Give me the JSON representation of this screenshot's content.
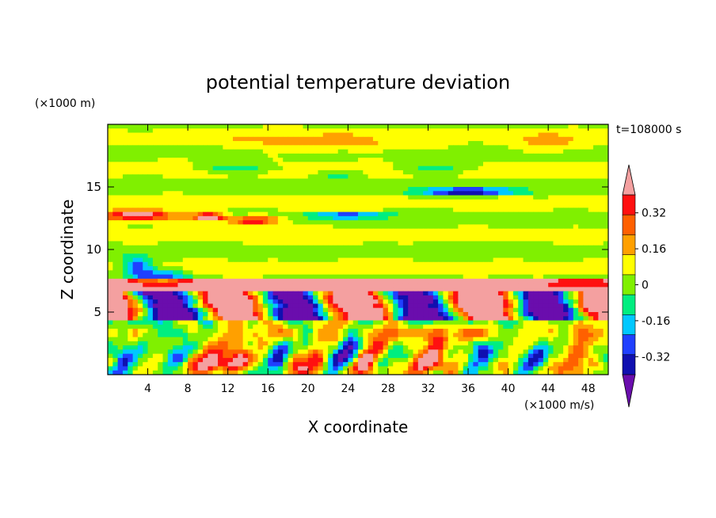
{
  "chart_data": {
    "type": "heatmap",
    "title": "potential temperature deviation",
    "xlabel": "X coordinate",
    "ylabel": "Z coordinate",
    "x_unit": "(×1000 m/s)",
    "y_unit": "(×1000 m)",
    "time_label": "t=108000 s",
    "xlim": [
      0,
      50
    ],
    "ylim": [
      0,
      20
    ],
    "x_ticks": [
      4,
      8,
      12,
      16,
      20,
      24,
      28,
      32,
      36,
      40,
      44,
      48
    ],
    "y_ticks": [
      5,
      10,
      15
    ],
    "colorbar": {
      "levels": [
        -0.48,
        -0.4,
        -0.32,
        -0.24,
        -0.16,
        -0.08,
        0,
        0.08,
        0.16,
        0.24,
        0.32,
        0.4,
        0.48
      ],
      "labeled_levels": [
        0.32,
        0.16,
        0,
        -0.16,
        -0.32
      ],
      "colors": [
        "#6a0dad",
        "#1010b0",
        "#2040ff",
        "#00c8ff",
        "#00ee80",
        "#80f000",
        "#ffff00",
        "#ffa000",
        "#ff6000",
        "#ff1010",
        "#f4a0a0"
      ],
      "extend": "both"
    }
  }
}
